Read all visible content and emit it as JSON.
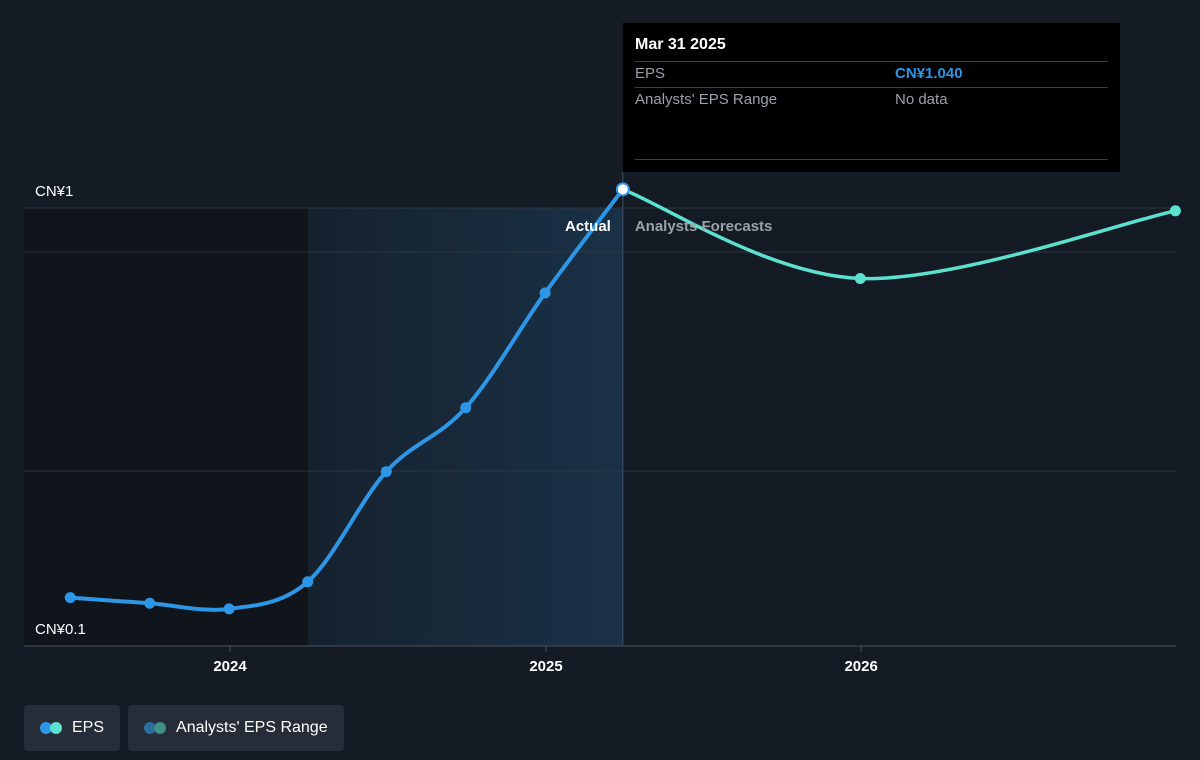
{
  "chart_data": {
    "type": "line",
    "y_tick_labels": [
      "CN¥1",
      "CN¥0.1"
    ],
    "x_tick_labels": [
      "2024",
      "2025",
      "2026"
    ],
    "x_ticks": [
      "2024-01-01",
      "2025-01-01",
      "2026-01-01"
    ],
    "ylim": [
      0.1,
      1
    ],
    "region_labels": {
      "actual": "Actual",
      "forecast": "Analysts Forecasts"
    },
    "series": [
      {
        "name": "EPS",
        "kind": "actual",
        "color": "#2d96e6",
        "points": [
          {
            "x": "2023-06-30",
            "y": 0.165
          },
          {
            "x": "2023-09-30",
            "y": 0.153
          },
          {
            "x": "2023-12-31",
            "y": 0.141
          },
          {
            "x": "2024-03-31",
            "y": 0.199
          },
          {
            "x": "2024-06-30",
            "y": 0.435
          },
          {
            "x": "2024-09-30",
            "y": 0.572
          },
          {
            "x": "2024-12-31",
            "y": 0.818
          },
          {
            "x": "2025-03-31",
            "y": 1.04
          }
        ]
      },
      {
        "name": "EPS",
        "kind": "forecast",
        "color": "#5ce1cf",
        "points": [
          {
            "x": "2025-03-31",
            "y": 1.04
          },
          {
            "x": "2025-12-31",
            "y": 0.849
          },
          {
            "x": "2026-12-31",
            "y": 0.994
          }
        ]
      }
    ],
    "highlight_range": [
      "2024-03-31",
      "2025-03-31"
    ],
    "grid": true,
    "colors": {
      "background": "#151b24",
      "past_shade": "#10151c",
      "eps": "#2d96e6",
      "forecast": "#5ce1cf",
      "grid": "#2e3540"
    }
  },
  "tooltip": {
    "date": "Mar 31 2025",
    "rows": [
      {
        "label": "EPS",
        "value": "CN¥1.040"
      },
      {
        "label": "Analysts' EPS Range",
        "value": "No data"
      }
    ]
  },
  "legend": {
    "items": [
      {
        "label": "EPS",
        "colors": [
          "#2d96e6",
          "#5ce1cf"
        ]
      },
      {
        "label": "Analysts' EPS Range",
        "colors": [
          "#2a6f9e",
          "#3f8f86"
        ]
      }
    ]
  }
}
